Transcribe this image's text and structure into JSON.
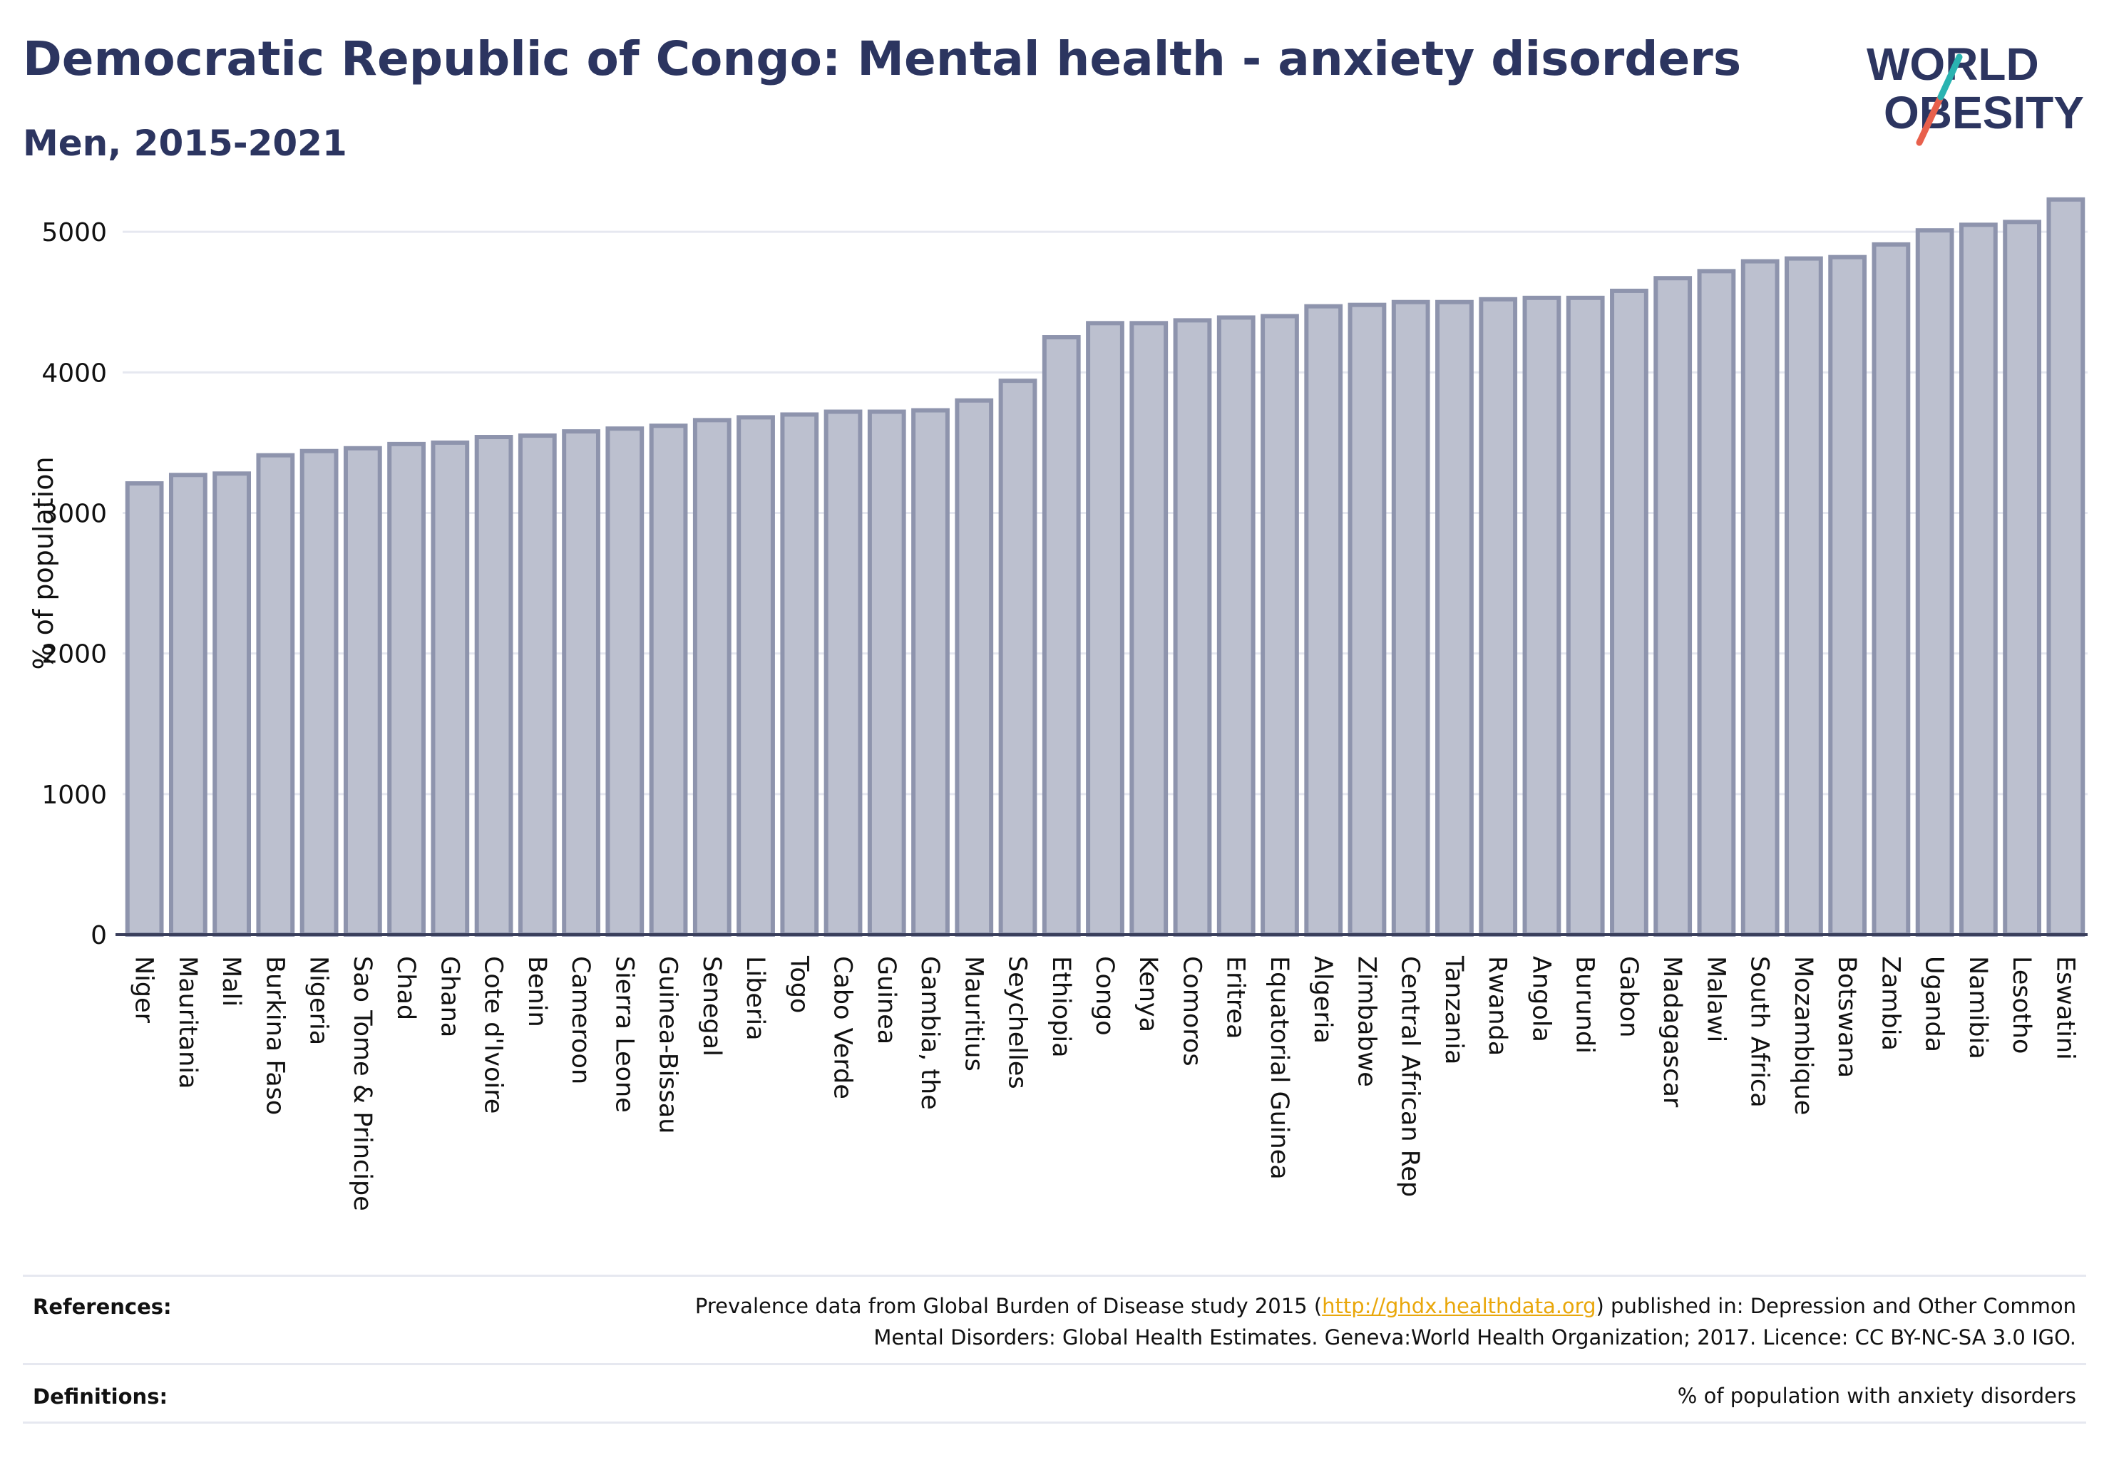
{
  "header": {
    "title": "Democratic Republic of Congo: Mental health - anxiety disorders",
    "subtitle": "Men, 2015-2021"
  },
  "logo": {
    "line1": "WORLD",
    "line2": "OBESITY"
  },
  "colors": {
    "title": "#2c3560",
    "bar_fill": "#bcc0cf",
    "bar_stroke": "#8e94ad",
    "grid": "#e6e8f0",
    "axis": "#3a3f5c",
    "link": "#e9a70b",
    "logo_teal": "#2ab3b1",
    "logo_red": "#e8604c"
  },
  "chart_data": {
    "type": "bar",
    "title": "Democratic Republic of Congo: Mental health - anxiety disorders",
    "subtitle": "Men, 2015-2021",
    "xlabel": "",
    "ylabel": "% of population",
    "ylim": [
      0,
      5300
    ],
    "yticks": [
      0,
      1000,
      2000,
      3000,
      4000,
      5000
    ],
    "grid": true,
    "categories": [
      "Niger",
      "Mauritania",
      "Mali",
      "Burkina Faso",
      "Nigeria",
      "Sao Tome & Principe",
      "Chad",
      "Ghana",
      "Cote d'Ivoire",
      "Benin",
      "Cameroon",
      "Sierra Leone",
      "Guinea-Bissau",
      "Senegal",
      "Liberia",
      "Togo",
      "Cabo Verde",
      "Guinea",
      "Gambia, the",
      "Mauritius",
      "Seychelles",
      "Ethiopia",
      "Congo",
      "Kenya",
      "Comoros",
      "Eritrea",
      "Equatorial Guinea",
      "Algeria",
      "Zimbabwe",
      "Central African Rep",
      "Tanzania",
      "Rwanda",
      "Angola",
      "Burundi",
      "Gabon",
      "Madagascar",
      "Malawi",
      "South Africa",
      "Mozambique",
      "Botswana",
      "Zambia",
      "Uganda",
      "Namibia",
      "Lesotho",
      "Eswatini"
    ],
    "values": [
      3210,
      3270,
      3280,
      3410,
      3440,
      3460,
      3490,
      3500,
      3540,
      3550,
      3580,
      3600,
      3620,
      3660,
      3680,
      3700,
      3720,
      3720,
      3730,
      3800,
      3940,
      4250,
      4350,
      4350,
      4370,
      4390,
      4400,
      4470,
      4480,
      4500,
      4500,
      4520,
      4530,
      4530,
      4580,
      4670,
      4720,
      4790,
      4810,
      4820,
      4910,
      5010,
      5050,
      5070,
      5230
    ]
  },
  "footer": {
    "references_label": "References:",
    "references_line1_pre": "Prevalence data from Global Burden of Disease study 2015 (",
    "references_link": "http://ghdx.healthdata.org",
    "references_line1_post": ") published in: Depression and Other Common",
    "references_line2": "Mental Disorders: Global Health Estimates. Geneva:World Health Organization; 2017. Licence: CC BY-NC-SA 3.0 IGO.",
    "definitions_label": "Definitions:",
    "definitions_text": "% of population with anxiety disorders"
  }
}
